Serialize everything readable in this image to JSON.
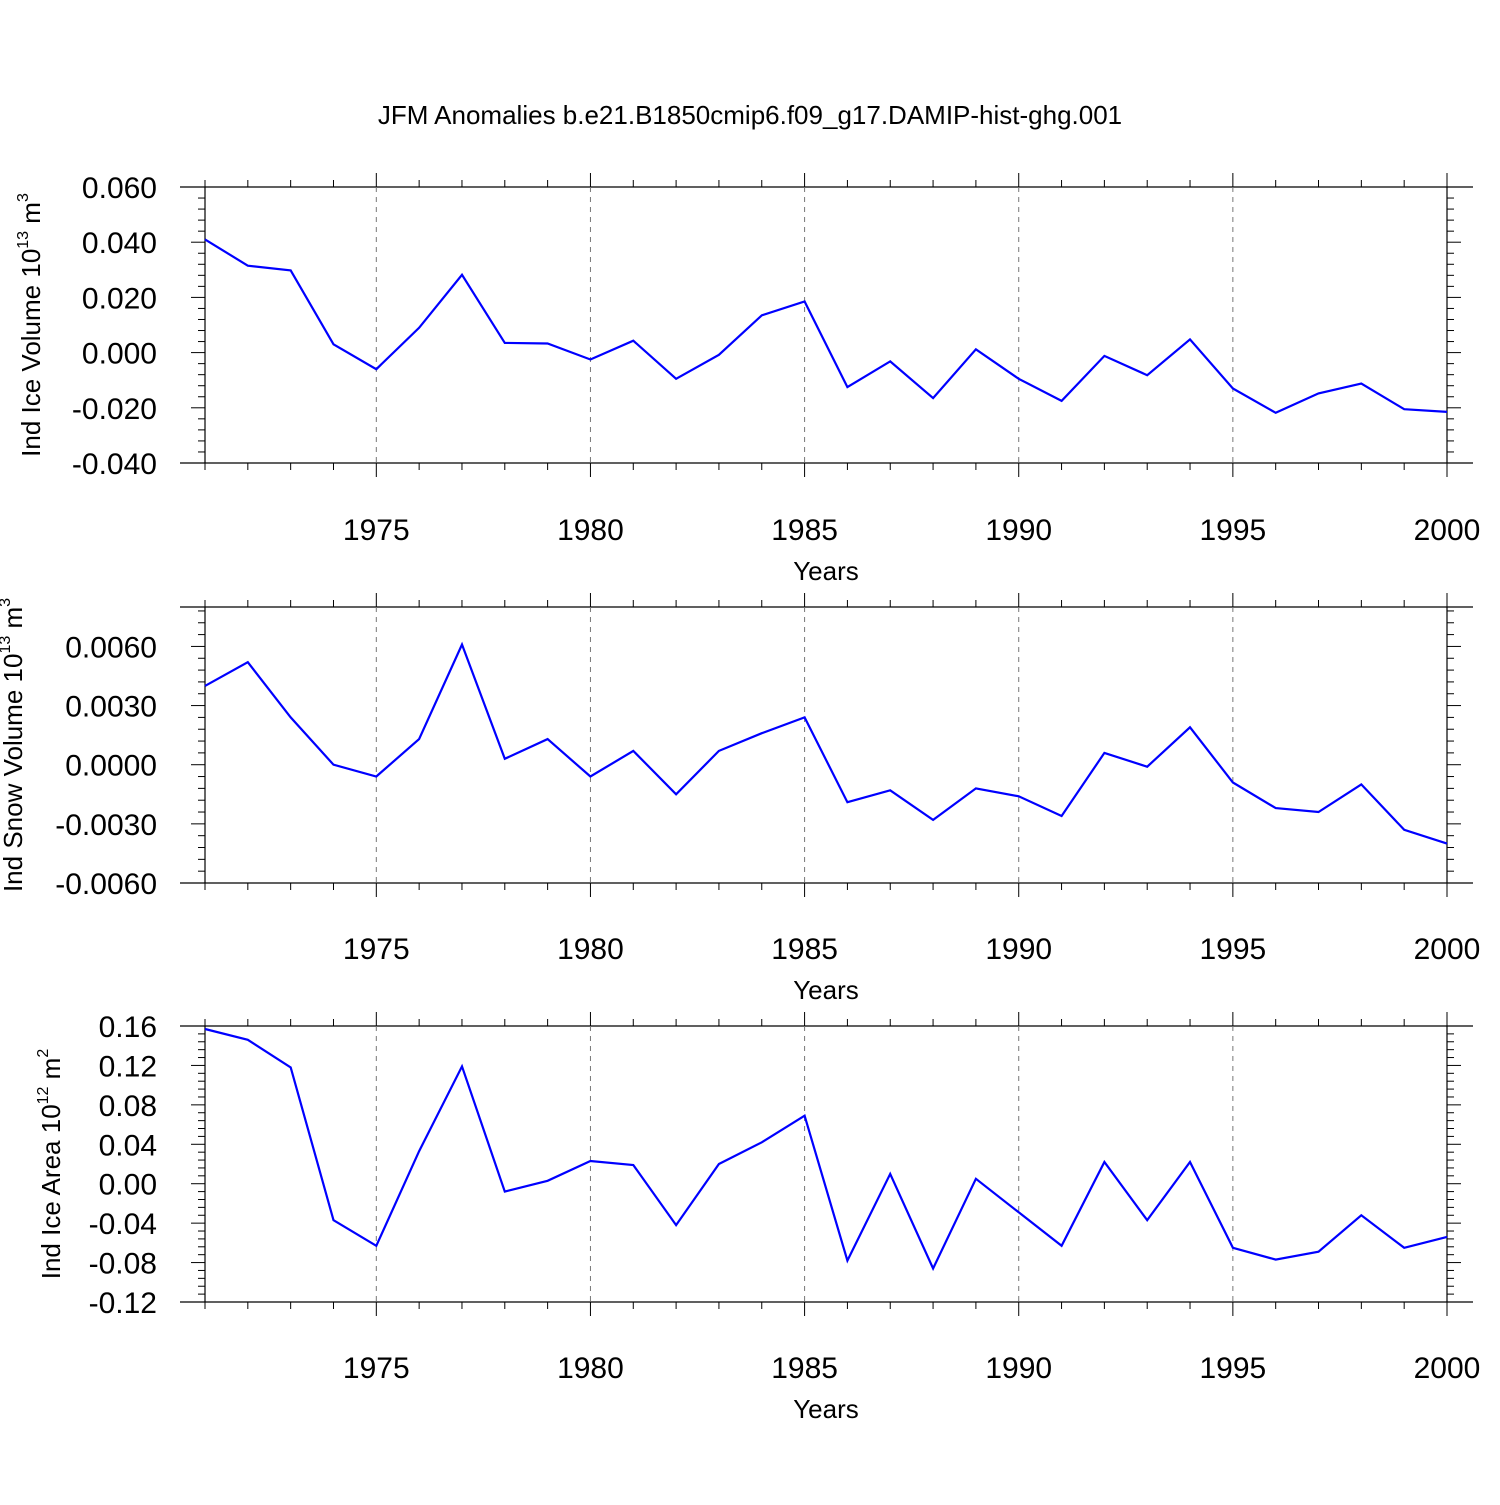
{
  "title": "JFM Anomalies b.e21.B1850cmip6.f09_g17.DAMIP-hist-ghg.001",
  "colors": {
    "series": "#0000ff",
    "grid": "#777777",
    "axis": "#000000"
  },
  "chart_data": [
    {
      "type": "line",
      "ylabel": "Ind Ice Volume 10",
      "ylabel_exp": "13",
      "ylabel_unit": " m",
      "ylabel_unit_exp": "3",
      "xlabel": "Years",
      "xlim": [
        1971,
        2000
      ],
      "ylim": [
        -0.04,
        0.06
      ],
      "yticks": [
        -0.04,
        -0.02,
        0.0,
        0.02,
        0.04,
        0.06
      ],
      "ytick_labels": [
        "-0.040",
        "-0.020",
        "0.000",
        "0.020",
        "0.040",
        "0.060"
      ],
      "xticks": [
        1975,
        1980,
        1985,
        1990,
        1995,
        2000
      ],
      "xtick_labels": [
        "1975",
        "1980",
        "1985",
        "1990",
        "1995",
        "2000"
      ],
      "grid": "vertical dashed at 1975, 1980, 1985, 1990, 1995",
      "x": [
        1971,
        1972,
        1973,
        1974,
        1975,
        1976,
        1977,
        1978,
        1979,
        1980,
        1981,
        1982,
        1983,
        1984,
        1985,
        1986,
        1987,
        1988,
        1989,
        1990,
        1991,
        1992,
        1993,
        1994,
        1995,
        1996,
        1997,
        1998,
        1999,
        2000
      ],
      "values": [
        0.041,
        0.0315,
        0.0298,
        0.003,
        -0.006,
        0.009,
        0.0282,
        0.0035,
        0.0033,
        -0.0025,
        0.0043,
        -0.0095,
        -0.0008,
        0.0135,
        0.0185,
        -0.0125,
        -0.0032,
        -0.0165,
        0.0012,
        -0.0095,
        -0.0175,
        -0.0012,
        -0.0082,
        0.0048,
        -0.013,
        -0.0218,
        -0.0148,
        -0.0112,
        -0.0205,
        -0.0215
      ]
    },
    {
      "type": "line",
      "ylabel": "Ind Snow Volume 10",
      "ylabel_exp": "13",
      "ylabel_unit": " m",
      "ylabel_unit_exp": "3",
      "xlabel": "Years",
      "xlim": [
        1971,
        2000
      ],
      "ylim": [
        -0.006,
        0.008
      ],
      "yticks": [
        -0.006,
        -0.003,
        0.0,
        0.003,
        0.006
      ],
      "ytick_labels": [
        "-0.0060",
        "-0.0030",
        "0.0000",
        "0.0030",
        "0.0060"
      ],
      "xticks": [
        1975,
        1980,
        1985,
        1990,
        1995,
        2000
      ],
      "xtick_labels": [
        "1975",
        "1980",
        "1985",
        "1990",
        "1995",
        "2000"
      ],
      "grid": "vertical dashed at 1975, 1980, 1985, 1990, 1995",
      "x": [
        1971,
        1972,
        1973,
        1974,
        1975,
        1976,
        1977,
        1978,
        1979,
        1980,
        1981,
        1982,
        1983,
        1984,
        1985,
        1986,
        1987,
        1988,
        1989,
        1990,
        1991,
        1992,
        1993,
        1994,
        1995,
        1996,
        1997,
        1998,
        1999,
        2000
      ],
      "values": [
        0.004,
        0.0052,
        0.0024,
        0.0,
        -0.0006,
        0.0013,
        0.0061,
        0.0003,
        0.0013,
        -0.0006,
        0.0007,
        -0.0015,
        0.0007,
        0.0016,
        0.0024,
        -0.0019,
        -0.0013,
        -0.0028,
        -0.0012,
        -0.0016,
        -0.0026,
        0.0006,
        -0.0001,
        0.0019,
        -0.0009,
        -0.0022,
        -0.0024,
        -0.001,
        -0.0033,
        -0.004
      ]
    },
    {
      "type": "line",
      "ylabel": "Ind Ice Area 10",
      "ylabel_exp": "12",
      "ylabel_unit": " m",
      "ylabel_unit_exp": "2",
      "xlabel": "Years",
      "xlim": [
        1971,
        2000
      ],
      "ylim": [
        -0.12,
        0.16
      ],
      "yticks": [
        -0.12,
        -0.08,
        -0.04,
        0.0,
        0.04,
        0.08,
        0.12,
        0.16
      ],
      "ytick_labels": [
        "-0.12",
        "-0.08",
        "-0.04",
        "0.00",
        "0.04",
        "0.08",
        "0.12",
        "0.16"
      ],
      "xticks": [
        1975,
        1980,
        1985,
        1990,
        1995,
        2000
      ],
      "xtick_labels": [
        "1975",
        "1980",
        "1985",
        "1990",
        "1995",
        "2000"
      ],
      "grid": "vertical dashed at 1975, 1980, 1985, 1990, 1995",
      "x": [
        1971,
        1972,
        1973,
        1974,
        1975,
        1976,
        1977,
        1978,
        1979,
        1980,
        1981,
        1982,
        1983,
        1984,
        1985,
        1986,
        1987,
        1988,
        1989,
        1990,
        1991,
        1992,
        1993,
        1994,
        1995,
        1996,
        1997,
        1998,
        1999,
        2000
      ],
      "values": [
        0.157,
        0.146,
        0.118,
        -0.037,
        -0.063,
        0.033,
        0.119,
        -0.008,
        0.003,
        0.023,
        0.019,
        -0.042,
        0.02,
        0.042,
        0.069,
        -0.078,
        0.01,
        -0.086,
        0.005,
        -0.029,
        -0.063,
        0.022,
        -0.037,
        0.022,
        -0.065,
        -0.077,
        -0.069,
        -0.032,
        -0.065,
        -0.054
      ]
    }
  ]
}
